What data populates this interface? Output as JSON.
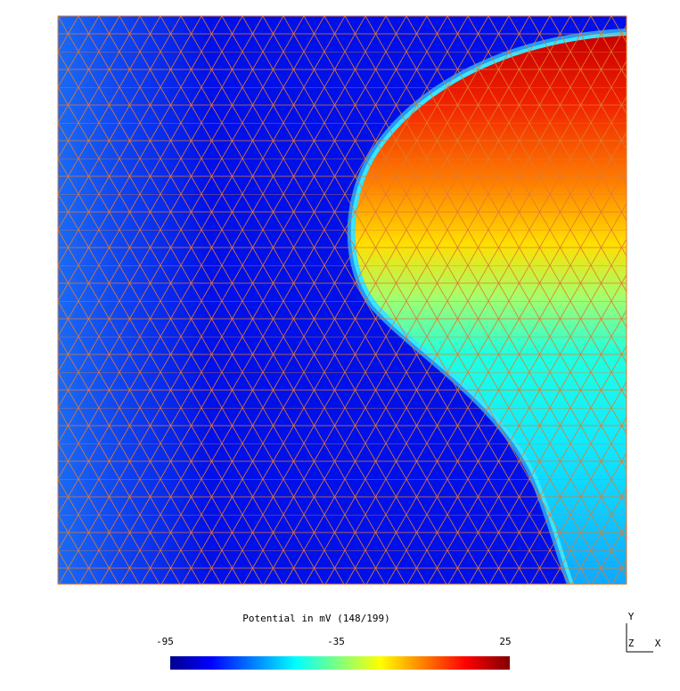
{
  "colorbar": {
    "title": "Potential in mV (148/199)",
    "ticks": [
      "-95",
      "-35",
      "25"
    ]
  },
  "axes": {
    "y": "Y",
    "z": "Z",
    "x": "X"
  }
}
